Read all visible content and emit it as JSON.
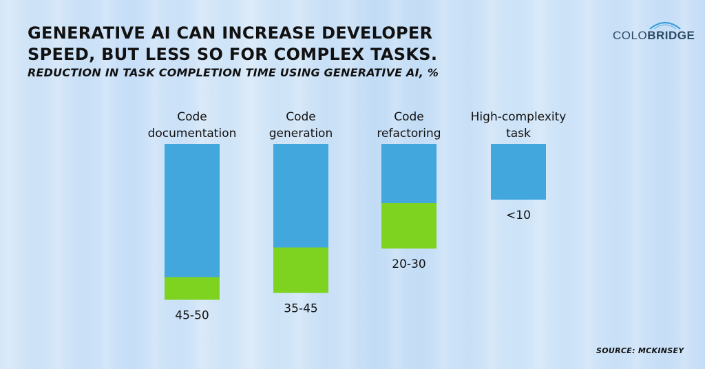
{
  "header": {
    "title_line1": "GENERATIVE AI CAN INCREASE DEVELOPER",
    "title_line2": "SPEED, BUT LESS SO FOR COMPLEX TASKS.",
    "subtitle": "REDUCTION IN TASK COMPLETION TIME USING GENERATIVE AI, %"
  },
  "logo": {
    "part1": "COLO",
    "part2": "BRIDGE"
  },
  "source": "SOURCE: MCKINSEY",
  "colors": {
    "bar_blue": "#42a7dd",
    "bar_green": "#7ed321",
    "text": "#111111"
  },
  "chart_data": {
    "type": "bar",
    "categories": [
      [
        "Code",
        "documentation"
      ],
      [
        "Code",
        "generation"
      ],
      [
        "Code",
        "refactoring"
      ],
      [
        "High-complexity",
        "task"
      ]
    ],
    "value_labels": [
      "45-50",
      "35-45",
      "20-30",
      "<10"
    ],
    "ranges": [
      [
        45,
        50
      ],
      [
        35,
        45
      ],
      [
        20,
        30
      ],
      [
        0,
        10
      ]
    ],
    "ylim": [
      0,
      50
    ]
  }
}
